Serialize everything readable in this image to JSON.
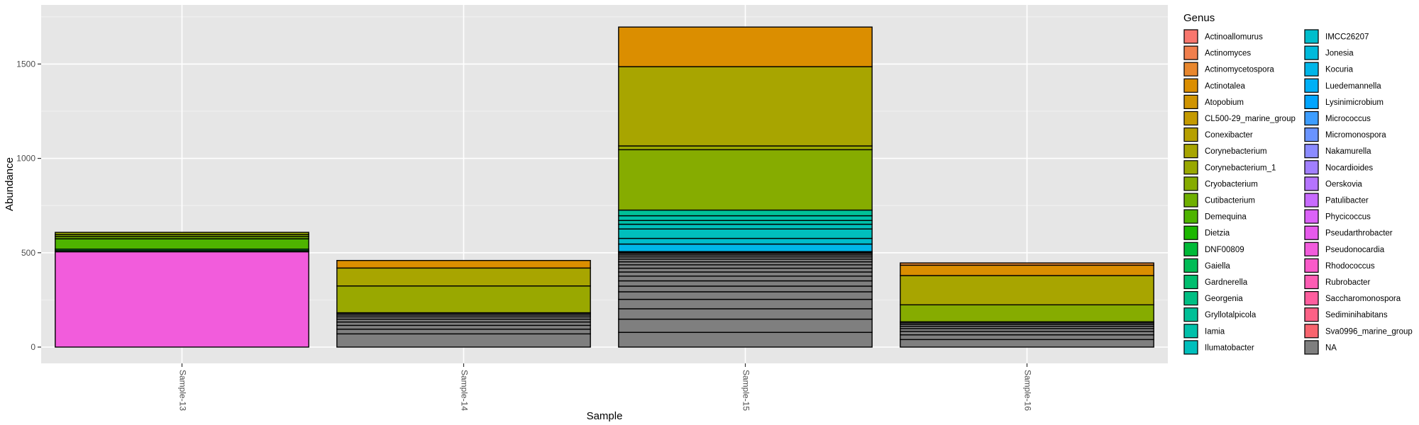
{
  "chart_data": {
    "type": "bar",
    "stacked": true,
    "xlabel": "Sample",
    "ylabel": "Abundance",
    "ylim": [
      0,
      1830
    ],
    "y_ticks": [
      0,
      500,
      1000,
      1500
    ],
    "grid": true,
    "background": "#e6e6e6",
    "categories": [
      "Sample-13",
      "Sample-14",
      "Sample-15",
      "Sample-16"
    ],
    "legend": {
      "title": "Genus",
      "placement": "right",
      "columns": 2,
      "entries": [
        {
          "name": "Actinoallomurus",
          "color": "#F8766D"
        },
        {
          "name": "Actinomyces",
          "color": "#F17F4D"
        },
        {
          "name": "Actinomycetospora",
          "color": "#E8872E"
        },
        {
          "name": "Actinotalea",
          "color": "#DB8E00"
        },
        {
          "name": "Atopobium",
          "color": "#D09400"
        },
        {
          "name": "CL500-29_marine_group",
          "color": "#C49A00"
        },
        {
          "name": "Conexibacter",
          "color": "#B7A000"
        },
        {
          "name": "Corynebacterium",
          "color": "#A8A500"
        },
        {
          "name": "Corynebacterium_1",
          "color": "#99A800"
        },
        {
          "name": "Cryobacterium",
          "color": "#86AC00"
        },
        {
          "name": "Cutibacterium",
          "color": "#6FB000"
        },
        {
          "name": "Demequina",
          "color": "#4EB400"
        },
        {
          "name": "Dietzia",
          "color": "#1CB700"
        },
        {
          "name": "DNF00809",
          "color": "#00BA38"
        },
        {
          "name": "Gaiella",
          "color": "#00BC56"
        },
        {
          "name": "Gardnerella",
          "color": "#00BE6E"
        },
        {
          "name": "Georgenia",
          "color": "#00BF83"
        },
        {
          "name": "Gryllotalpicola",
          "color": "#00C097"
        },
        {
          "name": "Iamia",
          "color": "#00C0AA"
        },
        {
          "name": "Ilumatobacter",
          "color": "#00BFBC"
        },
        {
          "name": "IMCC26207",
          "color": "#00BDCC"
        },
        {
          "name": "Jonesia",
          "color": "#00BADB"
        },
        {
          "name": "Kocuria",
          "color": "#00B6E9"
        },
        {
          "name": "Luedemannella",
          "color": "#00B0F6"
        },
        {
          "name": "Lysinimicrobium",
          "color": "#00A5FF"
        },
        {
          "name": "Micrococcus",
          "color": "#3D9DFF"
        },
        {
          "name": "Micromonospora",
          "color": "#6A94FF"
        },
        {
          "name": "Nakamurella",
          "color": "#8B8BFF"
        },
        {
          "name": "Nocardioides",
          "color": "#A17FFF"
        },
        {
          "name": "Oerskovia",
          "color": "#B574FF"
        },
        {
          "name": "Patulibacter",
          "color": "#C86BFF"
        },
        {
          "name": "Phycicoccus",
          "color": "#DB62F8"
        },
        {
          "name": "Pseudarthrobacter",
          "color": "#E75AEC"
        },
        {
          "name": "Pseudonocardia",
          "color": "#F25CDC"
        },
        {
          "name": "Rhodococcus",
          "color": "#FA5AC9"
        },
        {
          "name": "Rubrobacter",
          "color": "#FE5CB4"
        },
        {
          "name": "Saccharomonospora",
          "color": "#FF5E9E"
        },
        {
          "name": "Sediminihabitans",
          "color": "#FD6186"
        },
        {
          "name": "Sva0996_marine_group",
          "color": "#F8646E"
        },
        {
          "name": "NA",
          "color": "#7F7F7F"
        }
      ]
    },
    "stacks": [
      {
        "sample": "Sample-13",
        "segments": [
          {
            "genus": "Pseudonocardia",
            "value": 505
          },
          {
            "genus": "Dietzia",
            "value": 6
          },
          {
            "genus": "DNF00809",
            "value": 8
          },
          {
            "genus": "Demequina",
            "value": 55
          },
          {
            "genus": "Cutibacterium",
            "value": 12
          },
          {
            "genus": "Cryobacterium",
            "value": 10
          },
          {
            "genus": "Corynebacterium_1",
            "value": 12
          }
        ]
      },
      {
        "sample": "Sample-14",
        "segments": [
          {
            "genus": "NA",
            "value": 70
          },
          {
            "genus": "NA",
            "value": 25
          },
          {
            "genus": "NA",
            "value": 20
          },
          {
            "genus": "NA",
            "value": 18
          },
          {
            "genus": "NA",
            "value": 15
          },
          {
            "genus": "NA",
            "value": 12
          },
          {
            "genus": "NA",
            "value": 10
          },
          {
            "genus": "NA",
            "value": 8
          },
          {
            "genus": "Ilumatobacter",
            "value": 4
          },
          {
            "genus": "Corynebacterium_1",
            "value": 142
          },
          {
            "genus": "Corynebacterium",
            "value": 95
          },
          {
            "genus": "Actinotalea",
            "value": 40
          }
        ]
      },
      {
        "sample": "Sample-15",
        "segments": [
          {
            "genus": "NA",
            "value": 78
          },
          {
            "genus": "NA",
            "value": 70
          },
          {
            "genus": "NA",
            "value": 55
          },
          {
            "genus": "NA",
            "value": 50
          },
          {
            "genus": "NA",
            "value": 40
          },
          {
            "genus": "NA",
            "value": 30
          },
          {
            "genus": "NA",
            "value": 28
          },
          {
            "genus": "NA",
            "value": 25
          },
          {
            "genus": "NA",
            "value": 22
          },
          {
            "genus": "NA",
            "value": 20
          },
          {
            "genus": "NA",
            "value": 18
          },
          {
            "genus": "NA",
            "value": 16
          },
          {
            "genus": "NA",
            "value": 14
          },
          {
            "genus": "NA",
            "value": 12
          },
          {
            "genus": "NA",
            "value": 10
          },
          {
            "genus": "NA",
            "value": 8
          },
          {
            "genus": "NA",
            "value": 6
          },
          {
            "genus": "NA",
            "value": 4
          },
          {
            "genus": "Kocuria",
            "value": 40
          },
          {
            "genus": "IMCC26207",
            "value": 30
          },
          {
            "genus": "Ilumatobacter",
            "value": 50
          },
          {
            "genus": "Ilumatobacter",
            "value": 25
          },
          {
            "genus": "Iamia",
            "value": 20
          },
          {
            "genus": "Iamia",
            "value": 25
          },
          {
            "genus": "Gryllotalpicola",
            "value": 30
          },
          {
            "genus": "Cryobacterium",
            "value": 320
          },
          {
            "genus": "Corynebacterium_1",
            "value": 20
          },
          {
            "genus": "Corynebacterium",
            "value": 420
          },
          {
            "genus": "Actinotalea",
            "value": 210
          }
        ]
      },
      {
        "sample": "Sample-16",
        "segments": [
          {
            "genus": "NA",
            "value": 40
          },
          {
            "genus": "NA",
            "value": 25
          },
          {
            "genus": "NA",
            "value": 18
          },
          {
            "genus": "NA",
            "value": 15
          },
          {
            "genus": "NA",
            "value": 12
          },
          {
            "genus": "NA",
            "value": 10
          },
          {
            "genus": "NA",
            "value": 8
          },
          {
            "genus": "NA",
            "value": 6
          },
          {
            "genus": "Cryobacterium",
            "value": 90
          },
          {
            "genus": "Corynebacterium",
            "value": 155
          },
          {
            "genus": "Actinotalea",
            "value": 55
          },
          {
            "genus": "Actinomycetospora",
            "value": 12
          }
        ]
      }
    ]
  }
}
